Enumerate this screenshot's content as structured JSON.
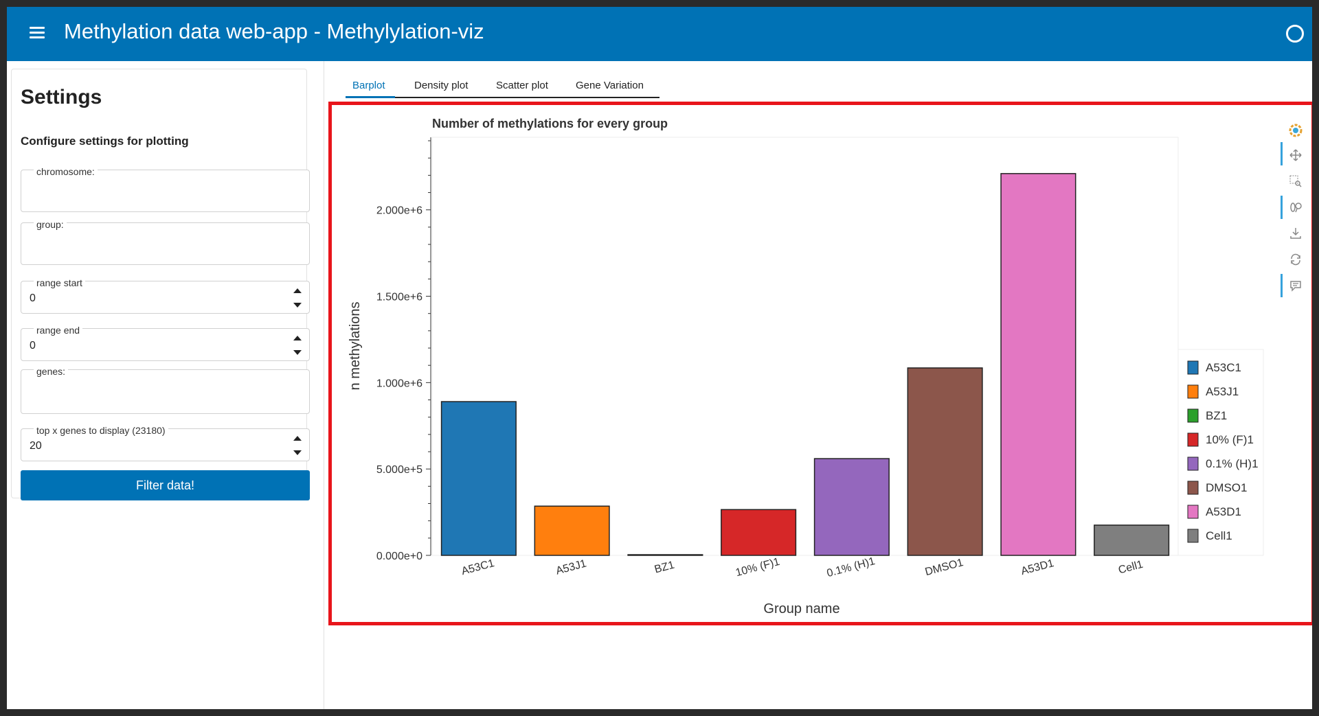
{
  "header": {
    "title": "Methylation data web-app - Methylylation-viz",
    "menu_icon": "hamburger-menu-icon",
    "status_icon": "busy-indicator-circle-icon"
  },
  "sidebar": {
    "title": "Settings",
    "subtitle": "Configure settings for plotting",
    "fields": {
      "chromosome": {
        "label": "chromosome:",
        "value": ""
      },
      "group": {
        "label": "group:",
        "value": ""
      },
      "range_start": {
        "label": "range start",
        "value": "0"
      },
      "range_end": {
        "label": "range end",
        "value": "0"
      },
      "genes": {
        "label": "genes:",
        "value": ""
      },
      "top_x": {
        "label": "top x genes to display (23180)",
        "value": "20"
      }
    },
    "filter_button": "Filter data!"
  },
  "tabs": [
    {
      "label": "Barplot",
      "active": true
    },
    {
      "label": "Density plot",
      "active": false
    },
    {
      "label": "Scatter plot",
      "active": false
    },
    {
      "label": "Gene Variation",
      "active": false
    }
  ],
  "toolbar": [
    "bokeh-logo-icon",
    "pan-icon",
    "box-zoom-icon",
    "wheel-zoom-icon",
    "save-icon",
    "reset-icon",
    "hover-icon"
  ],
  "colors": {
    "accent": "#0072b5",
    "highlight_border": "#e8151b"
  },
  "chart_data": {
    "type": "bar",
    "title": "Number of methylations for every group",
    "xlabel": "Group name",
    "ylabel": "n methylations",
    "categories": [
      "A53C1",
      "A53J1",
      "BZ1",
      "10% (F)1",
      "0.1% (H)1",
      "DMSO1",
      "A53D1",
      "Cell1"
    ],
    "values": [
      890000,
      285000,
      3000,
      265000,
      560000,
      1085000,
      2210000,
      175000
    ],
    "colors": [
      "#1f77b4",
      "#ff7f0e",
      "#2ca02c",
      "#d62728",
      "#9467bd",
      "#8c564b",
      "#e377c2",
      "#7f7f7f"
    ],
    "ylim": [
      0,
      2420000
    ],
    "yticks": [
      0,
      500000,
      1000000,
      1500000,
      2000000
    ],
    "ytick_labels": [
      "0.000e+0",
      "5.000e+5",
      "1.000e+6",
      "1.500e+6",
      "2.000e+6"
    ],
    "legend": [
      "A53C1",
      "A53J1",
      "BZ1",
      "10% (F)1",
      "0.1% (H)1",
      "DMSO1",
      "A53D1",
      "Cell1"
    ],
    "legend_position": "right",
    "grid": false
  }
}
